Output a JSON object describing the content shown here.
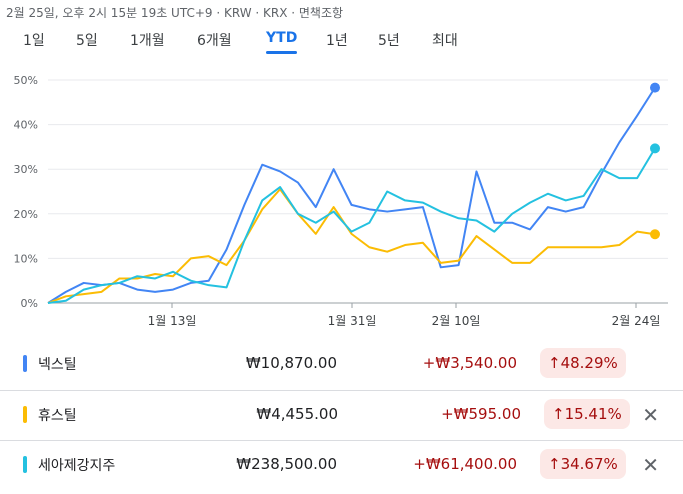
{
  "header": {
    "meta": "2월 25일, 오후 2시 15분 19초 UTC+9 · KRW · KRX · 면책조항"
  },
  "tabs": [
    {
      "label": "1일",
      "active": false
    },
    {
      "label": "5일",
      "active": false
    },
    {
      "label": "1개월",
      "active": false
    },
    {
      "label": "6개월",
      "active": false
    },
    {
      "label": "YTD",
      "active": true
    },
    {
      "label": "1년",
      "active": false
    },
    {
      "label": "5년",
      "active": false
    },
    {
      "label": "최대",
      "active": false
    }
  ],
  "chart_data": {
    "type": "line",
    "y_ticks": [
      "0%",
      "10%",
      "20%",
      "30%",
      "40%",
      "50%"
    ],
    "ylim": [
      0,
      50
    ],
    "x_ticks": [
      "1월 13일",
      "1월 31일",
      "2월 10일",
      "2월 24일"
    ],
    "grid": true,
    "series": [
      {
        "name": "넥스틸",
        "color": "#4285f4",
        "values": [
          0,
          2.5,
          4.5,
          4,
          4.5,
          3,
          2.5,
          3,
          4.5,
          5,
          12,
          22,
          31,
          29.5,
          27,
          21.5,
          30,
          22,
          21,
          20.5,
          21,
          21.5,
          8,
          8.5,
          29.5,
          18,
          18,
          16.5,
          21.5,
          20.5,
          21.5,
          29,
          36,
          42,
          48.29
        ]
      },
      {
        "name": "휴스틸",
        "color": "#fbbc04",
        "values": [
          0,
          1.5,
          2,
          2.5,
          5.5,
          5.5,
          6.5,
          6,
          10,
          10.5,
          8.5,
          14,
          21,
          25.5,
          20,
          15.5,
          21.5,
          15.5,
          12.5,
          11.5,
          13,
          13.5,
          9,
          9.5,
          15,
          12,
          9,
          9,
          12.5,
          12.5,
          12.5,
          12.5,
          13,
          16,
          15.41
        ]
      },
      {
        "name": "세아제강지주",
        "color": "#24c1e0",
        "values": [
          0,
          0.5,
          3,
          4,
          4.5,
          6,
          5.5,
          7,
          5,
          4,
          3.5,
          14,
          23,
          26,
          20,
          18,
          20.5,
          16,
          18,
          25,
          23,
          22.5,
          20.5,
          19,
          18.5,
          16,
          20,
          22.5,
          24.5,
          23,
          24,
          30,
          28,
          28,
          34.67
        ]
      }
    ]
  },
  "stocks": [
    {
      "name": "넥스틸",
      "price": "₩10,870.00",
      "change": "+₩3,540.00",
      "pct": "48.29%",
      "color": "#4285f4"
    },
    {
      "name": "휴스틸",
      "price": "₩4,455.00",
      "change": "+₩595.00",
      "pct": "15.41%",
      "color": "#fbbc04"
    },
    {
      "name": "세아제강지주",
      "price": "₩238,500.00",
      "change": "+₩61,400.00",
      "pct": "34.67%",
      "color": "#24c1e0"
    }
  ],
  "icons": {
    "up": "arrow-up-icon",
    "close": "close-icon"
  }
}
